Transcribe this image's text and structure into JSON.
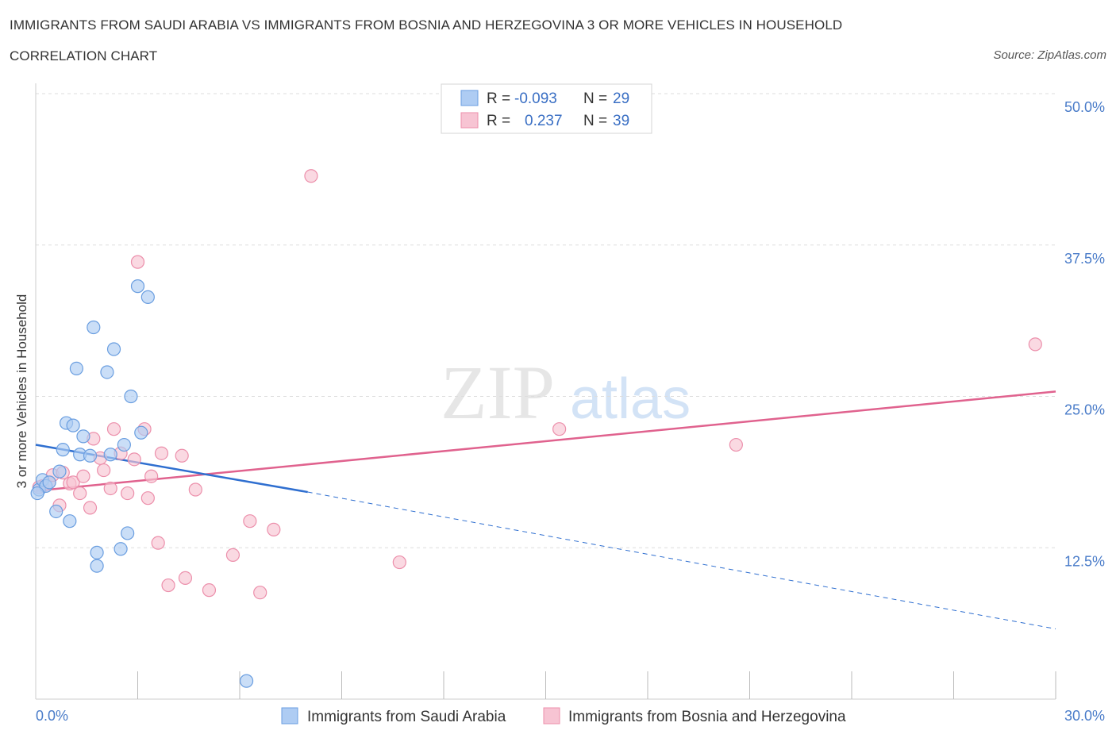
{
  "title_line1": "IMMIGRANTS FROM SAUDI ARABIA VS IMMIGRANTS FROM BOSNIA AND HERZEGOVINA 3 OR MORE VEHICLES IN HOUSEHOLD",
  "title_line2": "CORRELATION CHART",
  "source": "Source: ZipAtlas.com",
  "watermark": {
    "zip": "ZIP",
    "atlas": "atlas"
  },
  "colors": {
    "blue_fill": "#aeccf3",
    "blue_stroke": "#6a9ee0",
    "blue_line": "#2f6fd0",
    "pink_fill": "#f7c4d3",
    "pink_stroke": "#ec8fab",
    "pink_line": "#e0628e",
    "grid": "#dddddd",
    "tick_text": "#4a7cc9"
  },
  "legend": {
    "r_label": "R =",
    "n_label": "N =",
    "blue_r": "-0.093",
    "blue_n": "29",
    "pink_r": "0.237",
    "pink_n": "39"
  },
  "chart_data": {
    "type": "scatter",
    "title": "IMMIGRANTS FROM SAUDI ARABIA VS IMMIGRANTS FROM BOSNIA AND HERZEGOVINA 3 OR MORE VEHICLES IN HOUSEHOLD CORRELATION CHART",
    "xlabel": "",
    "ylabel": "3 or more Vehicles in Household",
    "xlim": [
      0,
      30
    ],
    "ylim": [
      0,
      50
    ],
    "x_tick_labels": [
      "0.0%",
      "30.0%"
    ],
    "y_ticks": [
      12.5,
      25,
      37.5,
      50
    ],
    "y_tick_labels": [
      "12.5%",
      "25.0%",
      "37.5%",
      "50.0%"
    ],
    "grid": true,
    "series": [
      {
        "name": "Immigrants from Saudi Arabia",
        "color": "#aeccf3",
        "points": [
          [
            0.1,
            17.3
          ],
          [
            0.2,
            18.1
          ],
          [
            0.3,
            17.6
          ],
          [
            0.4,
            17.9
          ],
          [
            0.6,
            15.5
          ],
          [
            0.7,
            18.8
          ],
          [
            0.8,
            20.6
          ],
          [
            0.9,
            22.8
          ],
          [
            1.0,
            14.7
          ],
          [
            1.1,
            22.6
          ],
          [
            1.2,
            27.3
          ],
          [
            1.3,
            20.2
          ],
          [
            1.4,
            21.7
          ],
          [
            1.6,
            20.1
          ],
          [
            1.7,
            30.7
          ],
          [
            1.8,
            11.0
          ],
          [
            1.8,
            12.1
          ],
          [
            2.1,
            27.0
          ],
          [
            2.2,
            20.2
          ],
          [
            2.3,
            28.9
          ],
          [
            2.5,
            12.4
          ],
          [
            2.6,
            21.0
          ],
          [
            2.7,
            13.7
          ],
          [
            2.8,
            25.0
          ],
          [
            3.1,
            22.0
          ],
          [
            3.0,
            34.1
          ],
          [
            3.3,
            33.2
          ],
          [
            6.2,
            1.5
          ],
          [
            0.05,
            17.0
          ]
        ],
        "trend": {
          "x": [
            0,
            8
          ],
          "y": [
            21.0,
            17.1
          ]
        },
        "trend_extended": {
          "x": [
            8,
            30
          ],
          "y": [
            17.1,
            5.8
          ]
        }
      },
      {
        "name": "Immigrants from Bosnia and Herzegovina",
        "color": "#f7c4d3",
        "points": [
          [
            0.2,
            17.6
          ],
          [
            0.4,
            17.9
          ],
          [
            0.5,
            18.5
          ],
          [
            0.7,
            16.0
          ],
          [
            0.8,
            18.7
          ],
          [
            1.0,
            17.8
          ],
          [
            1.1,
            17.9
          ],
          [
            1.3,
            17.0
          ],
          [
            1.4,
            18.4
          ],
          [
            1.6,
            15.8
          ],
          [
            1.7,
            21.5
          ],
          [
            1.9,
            19.9
          ],
          [
            2.0,
            18.9
          ],
          [
            2.2,
            17.4
          ],
          [
            2.3,
            22.3
          ],
          [
            2.5,
            20.3
          ],
          [
            2.7,
            17.0
          ],
          [
            2.9,
            19.8
          ],
          [
            3.0,
            36.1
          ],
          [
            3.2,
            22.3
          ],
          [
            3.3,
            16.6
          ],
          [
            3.4,
            18.4
          ],
          [
            3.6,
            12.9
          ],
          [
            3.7,
            20.3
          ],
          [
            3.9,
            9.4
          ],
          [
            4.3,
            20.1
          ],
          [
            4.4,
            10.0
          ],
          [
            4.7,
            17.3
          ],
          [
            5.1,
            9.0
          ],
          [
            5.8,
            11.9
          ],
          [
            6.3,
            14.7
          ],
          [
            6.6,
            8.8
          ],
          [
            7.0,
            14.0
          ],
          [
            8.1,
            43.2
          ],
          [
            10.7,
            11.3
          ],
          [
            15.4,
            22.3
          ],
          [
            20.6,
            21.0
          ],
          [
            29.4,
            29.3
          ],
          [
            0.1,
            17.5
          ]
        ],
        "trend": {
          "x": [
            0,
            30
          ],
          "y": [
            17.2,
            25.4
          ]
        }
      }
    ]
  },
  "bottom_legend": [
    {
      "label": "Immigrants from Saudi Arabia",
      "color": "#aeccf3"
    },
    {
      "label": "Immigrants from Bosnia and Herzegovina",
      "color": "#f7c4d3"
    }
  ]
}
